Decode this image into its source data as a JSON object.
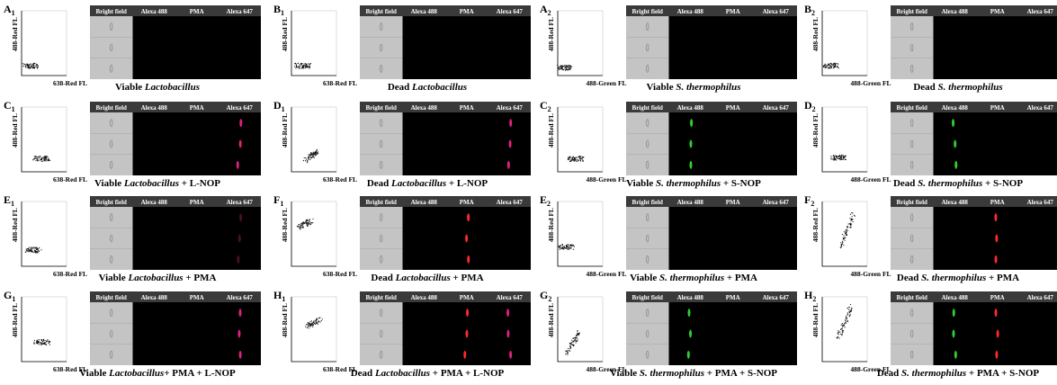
{
  "channels": [
    "Bright field",
    "Alexa 488",
    "PMA",
    "Alexa 647"
  ],
  "panels": [
    {
      "label": "A",
      "sub": "1",
      "y_axis": "488-Red FL",
      "x_axis": "638-Red FL",
      "caption": [
        "Viable ",
        "Lactobacillus"
      ]
    },
    {
      "label": "B",
      "sub": "1",
      "y_axis": "488-Red FL",
      "x_axis": "638-Red FL",
      "caption": [
        "Dead ",
        "Lactobacillus"
      ]
    },
    {
      "label": "A",
      "sub": "2",
      "y_axis": "488-Red FL",
      "x_axis": "488-Green FL",
      "caption": [
        "Viable ",
        "S. thermophilus"
      ]
    },
    {
      "label": "B",
      "sub": "2",
      "y_axis": "488-Red FL",
      "x_axis": "488-Green FL",
      "caption": [
        "Dead ",
        "S. thermophilus"
      ]
    },
    {
      "label": "C",
      "sub": "1",
      "y_axis": "488-Red FL",
      "x_axis": "638-Red FL",
      "caption": [
        "Viable ",
        "Lactobacillus",
        " + L-NOP"
      ]
    },
    {
      "label": "D",
      "sub": "1",
      "y_axis": "488-Red FL",
      "x_axis": "638-Red FL",
      "caption": [
        "Dead ",
        "Lactobacillus",
        " + L-NOP"
      ]
    },
    {
      "label": "C",
      "sub": "2",
      "y_axis": "488-Red FL",
      "x_axis": "488-Green FL",
      "caption": [
        "Viable ",
        "S. thermophilus",
        " + S-NOP"
      ]
    },
    {
      "label": "D",
      "sub": "2",
      "y_axis": "488-Red FL",
      "x_axis": "488-Green FL",
      "caption": [
        "Dead ",
        "S. thermophilus",
        " + S-NOP"
      ]
    },
    {
      "label": "E",
      "sub": "1",
      "y_axis": "488-Red FL",
      "x_axis": "638-Red FL",
      "caption": [
        "Viable ",
        "Lactobacillus",
        " + PMA"
      ]
    },
    {
      "label": "F",
      "sub": "1",
      "y_axis": "488-Red FL",
      "x_axis": "638-Red FL",
      "caption": [
        "Dead ",
        "Lactobacillus",
        " + PMA"
      ]
    },
    {
      "label": "E",
      "sub": "2",
      "y_axis": "488-Red FL",
      "x_axis": "488-Green FL",
      "caption": [
        "Viable ",
        "S. thermophilus",
        " + PMA"
      ]
    },
    {
      "label": "F",
      "sub": "2",
      "y_axis": "488-Red FL",
      "x_axis": "488-Green FL",
      "caption": [
        "Dead ",
        "S. thermophilus",
        " + PMA"
      ]
    },
    {
      "label": "G",
      "sub": "1",
      "y_axis": "488-Red FL",
      "x_axis": "638-Red FL",
      "caption": [
        "Viable ",
        "Lactobacillus",
        "+ PMA + L-NOP"
      ]
    },
    {
      "label": "H",
      "sub": "1",
      "y_axis": "488-Red FL",
      "x_axis": "638-Red FL",
      "caption": [
        "Dead ",
        "Lactobacillus",
        " + PMA + L-NOP"
      ]
    },
    {
      "label": "G",
      "sub": "2",
      "y_axis": "488-Red FL",
      "x_axis": "488-Green FL",
      "caption": [
        "Viable ",
        "S. thermophilus",
        " + PMA + S-NOP"
      ]
    },
    {
      "label": "H",
      "sub": "2",
      "y_axis": "488-Red FL",
      "x_axis": "488-Green FL",
      "caption": [
        "Dead ",
        "S. thermophilus",
        " + PMA + S-NOP"
      ]
    }
  ]
}
